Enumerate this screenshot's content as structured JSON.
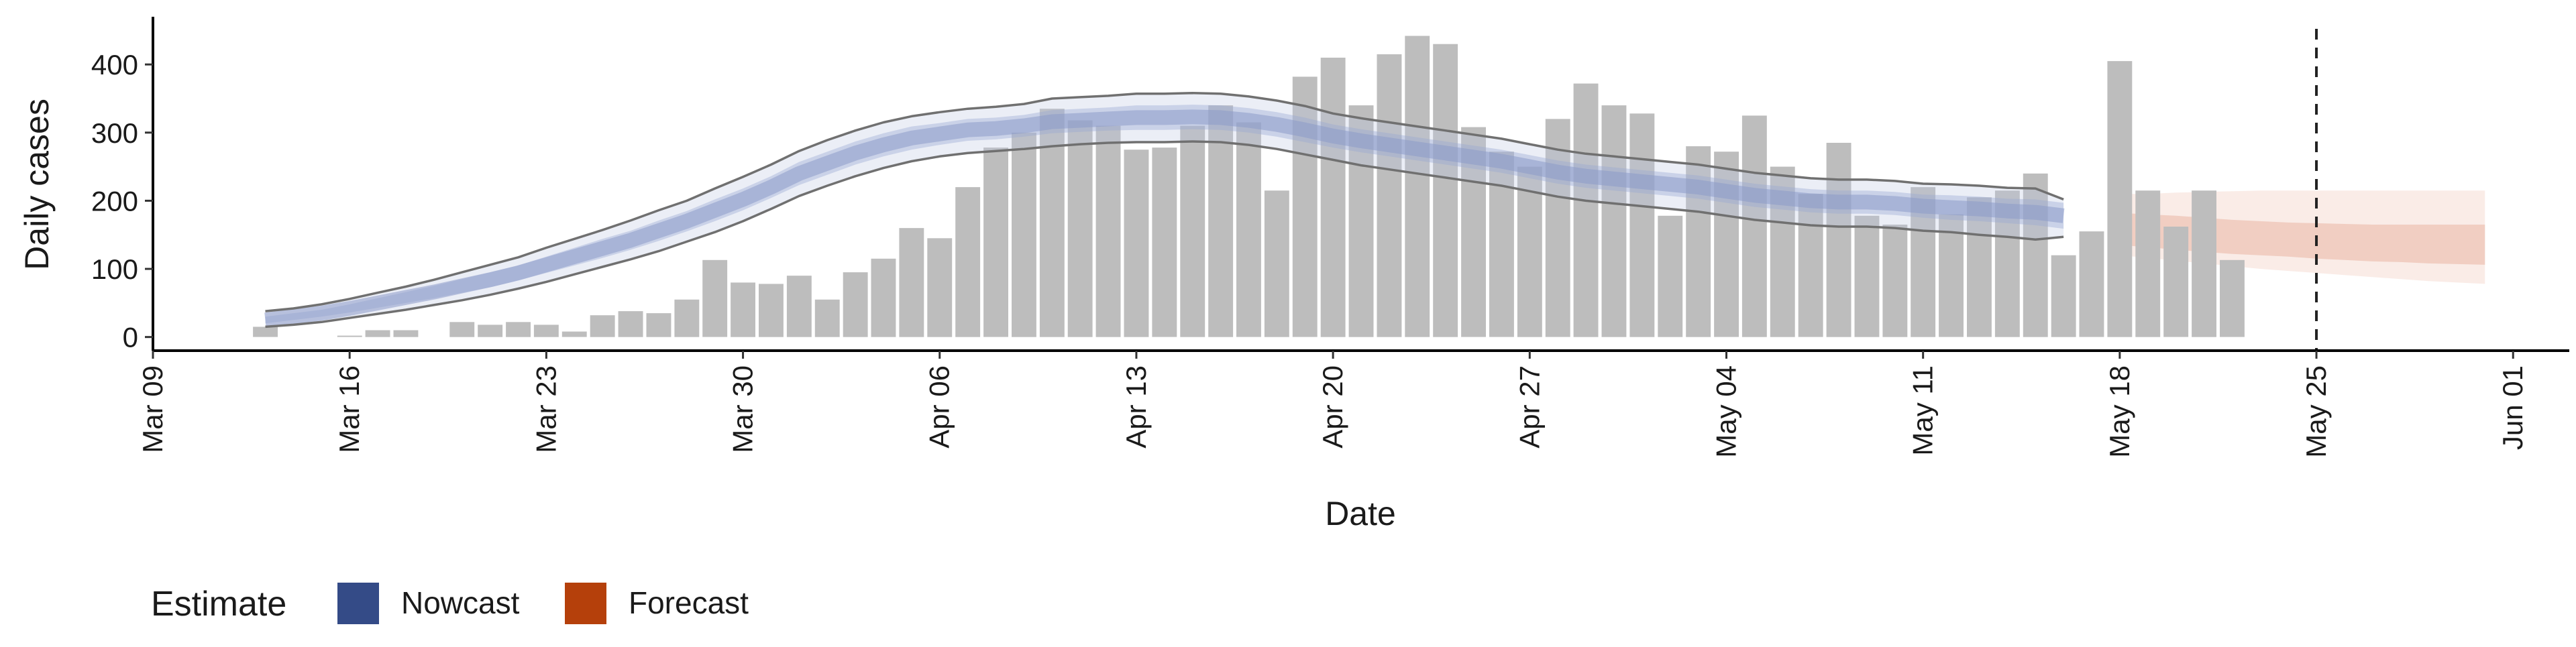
{
  "chart_data": {
    "type": "bar",
    "xlabel": "Date",
    "ylabel": "Daily cases",
    "x_range": [
      "2020-03-09",
      "2020-06-03"
    ],
    "ylim": [
      -20,
      470
    ],
    "y_ticks": [
      0,
      100,
      200,
      300,
      400
    ],
    "x_ticks": [
      {
        "date": "2020-03-09",
        "label": "Mar 09"
      },
      {
        "date": "2020-03-16",
        "label": "Mar 16"
      },
      {
        "date": "2020-03-23",
        "label": "Mar 23"
      },
      {
        "date": "2020-03-30",
        "label": "Mar 30"
      },
      {
        "date": "2020-04-06",
        "label": "Apr 06"
      },
      {
        "date": "2020-04-13",
        "label": "Apr 13"
      },
      {
        "date": "2020-04-20",
        "label": "Apr 20"
      },
      {
        "date": "2020-04-27",
        "label": "Apr 27"
      },
      {
        "date": "2020-05-04",
        "label": "May 04"
      },
      {
        "date": "2020-05-11",
        "label": "May 11"
      },
      {
        "date": "2020-05-18",
        "label": "May 18"
      },
      {
        "date": "2020-05-25",
        "label": "May 25"
      },
      {
        "date": "2020-06-01",
        "label": "Jun 01"
      }
    ],
    "grid": false,
    "legend": {
      "position": "bottom-left",
      "title": "Estimate",
      "entries": [
        {
          "label": "Nowcast",
          "color": "#344b87"
        },
        {
          "label": "Forecast",
          "color": "#b5400b"
        }
      ]
    },
    "report_date": "2020-05-25",
    "bar_color": "#bdbdbd",
    "cases": {
      "start": "2020-03-13",
      "values": [
        15,
        0,
        0,
        2,
        10,
        10,
        0,
        22,
        18,
        22,
        18,
        8,
        32,
        38,
        35,
        55,
        113,
        80,
        78,
        90,
        55,
        95,
        115,
        160,
        145,
        220,
        278,
        300,
        335,
        318,
        310,
        275,
        278,
        310,
        340,
        315,
        215,
        382,
        410,
        340,
        415,
        442,
        430,
        308,
        272,
        250,
        320,
        372,
        340,
        328,
        178,
        280,
        272,
        325,
        250,
        210,
        285,
        178,
        165,
        220,
        180,
        205,
        215,
        240,
        120,
        155,
        405,
        215,
        162,
        215,
        113
      ]
    },
    "nowcast": {
      "start": "2020-03-13",
      "median": [
        25,
        30,
        35,
        42,
        50,
        58,
        66,
        75,
        84,
        94,
        106,
        118,
        130,
        142,
        156,
        170,
        186,
        202,
        220,
        240,
        255,
        270,
        282,
        292,
        298,
        304,
        306,
        310,
        316,
        318,
        320,
        322,
        322,
        323,
        322,
        318,
        312,
        304,
        295,
        288,
        282,
        276,
        270,
        264,
        258,
        250,
        242,
        236,
        232,
        228,
        224,
        220,
        214,
        208,
        204,
        200,
        198,
        198,
        196,
        192,
        190,
        188,
        185,
        183,
        178
      ],
      "inner_lower": [
        20,
        25,
        30,
        36,
        43,
        50,
        57,
        65,
        73,
        83,
        94,
        105,
        116,
        128,
        141,
        155,
        170,
        186,
        204,
        223,
        238,
        253,
        265,
        275,
        282,
        288,
        290,
        294,
        299,
        301,
        303,
        304,
        304,
        305,
        304,
        300,
        294,
        286,
        278,
        271,
        265,
        259,
        253,
        247,
        241,
        233,
        225,
        219,
        215,
        211,
        207,
        203,
        197,
        191,
        187,
        183,
        181,
        181,
        179,
        175,
        172,
        170,
        167,
        164,
        159
      ],
      "inner_upper": [
        30,
        35,
        40,
        48,
        57,
        66,
        75,
        85,
        95,
        105,
        118,
        131,
        144,
        156,
        171,
        185,
        202,
        218,
        236,
        257,
        272,
        287,
        299,
        309,
        314,
        320,
        322,
        326,
        333,
        335,
        337,
        340,
        340,
        341,
        340,
        336,
        330,
        322,
        312,
        305,
        299,
        293,
        287,
        281,
        275,
        267,
        259,
        253,
        249,
        245,
        241,
        237,
        231,
        225,
        221,
        217,
        215,
        215,
        213,
        209,
        208,
        206,
        203,
        202,
        197
      ],
      "outer_lower": [
        15,
        18,
        22,
        28,
        34,
        40,
        47,
        54,
        62,
        71,
        81,
        92,
        103,
        114,
        126,
        140,
        154,
        170,
        188,
        207,
        222,
        236,
        248,
        258,
        265,
        270,
        273,
        276,
        280,
        283,
        285,
        286,
        286,
        287,
        286,
        282,
        276,
        268,
        260,
        252,
        246,
        240,
        234,
        228,
        222,
        214,
        206,
        200,
        196,
        192,
        188,
        184,
        178,
        172,
        168,
        164,
        162,
        162,
        160,
        156,
        154,
        150,
        147,
        143,
        147
      ],
      "outer_upper": [
        38,
        42,
        48,
        56,
        65,
        74,
        84,
        95,
        106,
        117,
        131,
        144,
        157,
        171,
        186,
        200,
        218,
        235,
        253,
        273,
        289,
        303,
        315,
        324,
        330,
        335,
        338,
        342,
        350,
        352,
        354,
        357,
        357,
        358,
        357,
        353,
        347,
        339,
        328,
        321,
        315,
        309,
        303,
        297,
        291,
        283,
        275,
        269,
        265,
        261,
        257,
        253,
        247,
        241,
        237,
        233,
        231,
        231,
        229,
        225,
        224,
        222,
        219,
        218,
        202
      ]
    },
    "forecast": {
      "start": "2020-05-18",
      "median": [
        155,
        152,
        150,
        148,
        146,
        144,
        142,
        140,
        138,
        137,
        136,
        135,
        134,
        134
      ],
      "inner_lower": [
        135,
        132,
        128,
        125,
        122,
        120,
        118,
        115,
        113,
        111,
        110,
        108,
        107,
        106
      ],
      "inner_upper": [
        182,
        180,
        178,
        175,
        172,
        170,
        168,
        167,
        166,
        165,
        165,
        165,
        165,
        165
      ],
      "outer_lower": [
        120,
        116,
        112,
        108,
        104,
        100,
        97,
        94,
        91,
        88,
        85,
        82,
        80,
        78
      ],
      "outer_upper": [
        210,
        210,
        212,
        213,
        214,
        215,
        215,
        215,
        215,
        215,
        215,
        215,
        215,
        215
      ]
    }
  }
}
